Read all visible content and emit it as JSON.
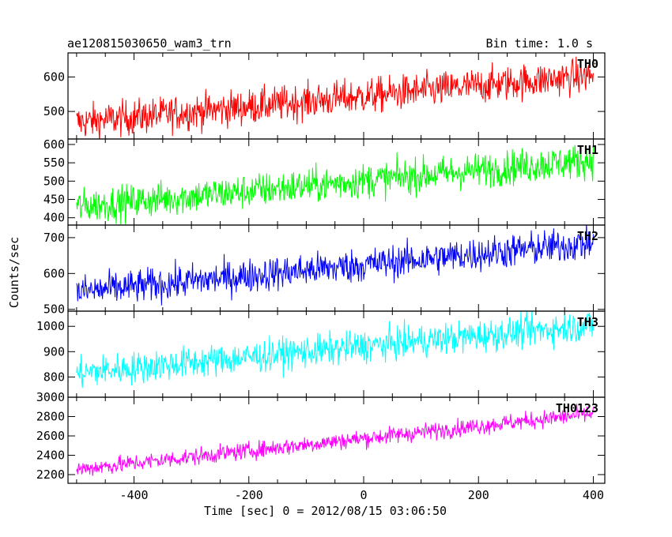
{
  "header": {
    "title": "ae120815030650_wam3_trn",
    "bin_time": "Bin time: 1.0 s"
  },
  "chart_data": {
    "type": "line",
    "xlabel": "Time [sec] 0 = 2012/08/15 03:06:50",
    "ylabel": "Counts/sec",
    "xlim": [
      -515,
      420
    ],
    "x_ticks": [
      -400,
      -200,
      0,
      200,
      400
    ],
    "x_range_data": [
      -500,
      400
    ],
    "panels": [
      {
        "name": "TH0",
        "color": "#ff0000",
        "ylim": [
          420,
          670
        ],
        "yticks": [
          500,
          600
        ],
        "trend_start": 468,
        "trend_end": 605,
        "noise": 26
      },
      {
        "name": "TH1",
        "color": "#00ff00",
        "ylim": [
          380,
          615
        ],
        "yticks": [
          400,
          450,
          500,
          550,
          600
        ],
        "trend_start": 430,
        "trend_end": 558,
        "noise": 24
      },
      {
        "name": "TH2",
        "color": "#0000ff",
        "ylim": [
          495,
          735
        ],
        "yticks": [
          500,
          600,
          700
        ],
        "trend_start": 548,
        "trend_end": 685,
        "noise": 24
      },
      {
        "name": "TH3",
        "color": "#00ffff",
        "ylim": [
          720,
          1060
        ],
        "yticks": [
          800,
          900,
          1000
        ],
        "trend_start": 815,
        "trend_end": 1005,
        "noise": 32
      },
      {
        "name": "TH0123",
        "color": "#ff00ff",
        "ylim": [
          2110,
          3000
        ],
        "yticks": [
          2200,
          2400,
          2600,
          2800,
          3000
        ],
        "trend_start": 2255,
        "trend_end": 2830,
        "noise": 45
      }
    ]
  }
}
